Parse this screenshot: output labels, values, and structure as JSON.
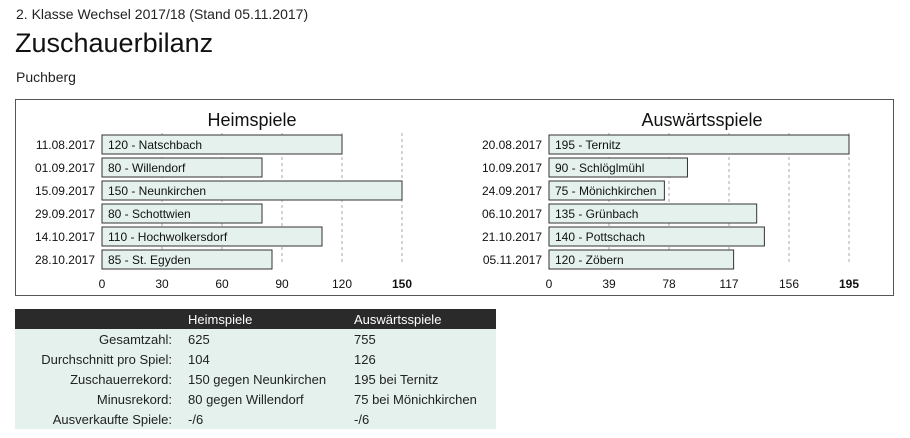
{
  "header": {
    "league": "2. Klasse Wechsel 2017/18 (Stand 05.11.2017)",
    "title": "Zuschauerbilanz",
    "club": "Puchberg"
  },
  "colors": {
    "bar_fill": "#e4f1ec",
    "bar_stroke": "#333333",
    "grid": "#aaaaaa",
    "table_header": "#2a2a2a",
    "table_body": "#e4f1ec"
  },
  "chart_data": [
    {
      "type": "bar",
      "orientation": "horizontal",
      "title": "Heimspiele",
      "categories": [
        "11.08.2017",
        "01.09.2017",
        "15.09.2017",
        "29.09.2017",
        "14.10.2017",
        "28.10.2017"
      ],
      "values": [
        120,
        80,
        150,
        80,
        110,
        85
      ],
      "bar_labels": [
        "120 - Natschbach",
        "80 - Willendorf",
        "150 - Neunkirchen",
        "80 - Schottwien",
        "110 - Hochwolkersdorf",
        "85 - St. Egyden"
      ],
      "xlim": [
        0,
        150
      ],
      "xticks": [
        0,
        30,
        60,
        90,
        120,
        150
      ],
      "grid": true
    },
    {
      "type": "bar",
      "orientation": "horizontal",
      "title": "Auswärtsspiele",
      "categories": [
        "20.08.2017",
        "10.09.2017",
        "24.09.2017",
        "06.10.2017",
        "21.10.2017",
        "05.11.2017"
      ],
      "values": [
        195,
        90,
        75,
        135,
        140,
        120
      ],
      "bar_labels": [
        "195 - Ternitz",
        "90 - Schlöglmühl",
        "75 - Mönichkirchen",
        "135 - Grünbach",
        "140 - Pottschach",
        "120 - Zöbern"
      ],
      "xlim": [
        0,
        195
      ],
      "xticks": [
        0,
        39,
        78,
        117,
        156,
        195
      ],
      "grid": true
    }
  ],
  "stats_table": {
    "columns": [
      "",
      "Heimspiele",
      "Auswärtsspiele"
    ],
    "rows": [
      [
        "Gesamtzahl:",
        "625",
        "755"
      ],
      [
        "Durchschnitt pro Spiel:",
        "104",
        "126"
      ],
      [
        "Zuschauerrekord:",
        "150 gegen Neunkirchen",
        "195 bei Ternitz"
      ],
      [
        "Minusrekord:",
        "80 gegen Willendorf",
        "75 bei Mönichkirchen"
      ],
      [
        "Ausverkaufte Spiele:",
        "-/6",
        "-/6"
      ]
    ]
  }
}
